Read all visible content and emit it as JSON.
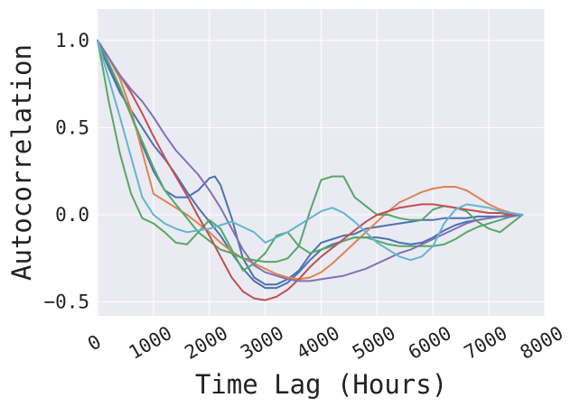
{
  "chart_data": {
    "type": "line",
    "title": "",
    "xlabel": "Time Lag (Hours)",
    "ylabel": "Autocorrelation",
    "xlim": [
      0,
      8000
    ],
    "ylim": [
      -0.58,
      1.18
    ],
    "grid": true,
    "background": "#eaeaf2",
    "xticks": [
      0,
      1000,
      2000,
      3000,
      4000,
      5000,
      6000,
      7000,
      8000
    ],
    "xtick_labels": [
      "0",
      "1000",
      "2000",
      "3000",
      "4000",
      "5000",
      "6000",
      "7000",
      "8000"
    ],
    "yticks": [
      1.0,
      0.5,
      0.0,
      -0.5
    ],
    "ytick_labels": [
      "1.0",
      "0.5",
      "0.0",
      "−0.5"
    ],
    "series": [
      {
        "color": "#4c72b0",
        "x": [
          0,
          200,
          400,
          600,
          800,
          1000,
          1200,
          1400,
          1600,
          1800,
          2000,
          2100,
          2200,
          2400,
          2600,
          2800,
          3000,
          3200,
          3400,
          3600,
          3800,
          4000,
          4200,
          4400,
          4600,
          4800,
          5000,
          5200,
          5400,
          5600,
          5800,
          6000,
          6200,
          6400,
          6600,
          6800,
          7000,
          7200,
          7400,
          7600
        ],
        "y": [
          1.0,
          0.86,
          0.72,
          0.57,
          0.4,
          0.25,
          0.14,
          0.1,
          0.1,
          0.14,
          0.21,
          0.22,
          0.17,
          -0.02,
          -0.25,
          -0.36,
          -0.4,
          -0.4,
          -0.37,
          -0.32,
          -0.23,
          -0.16,
          -0.14,
          -0.12,
          -0.11,
          -0.08,
          -0.07,
          -0.06,
          -0.05,
          -0.04,
          -0.03,
          -0.03,
          -0.02,
          -0.02,
          -0.02,
          -0.01,
          -0.01,
          -0.01,
          0.0,
          0.0
        ]
      },
      {
        "color": "#4c72b0",
        "x": [
          0,
          200,
          400,
          600,
          800,
          1000,
          1200,
          1400,
          1600,
          1800,
          2000,
          2200,
          2400,
          2600,
          2800,
          3000,
          3200,
          3400,
          3600,
          3800,
          4000,
          4200,
          4400,
          4600,
          4800,
          5000,
          5200,
          5400,
          5600,
          5800,
          6000,
          6200,
          6400,
          6600,
          6800,
          7000,
          7200,
          7400,
          7600
        ],
        "y": [
          1.0,
          0.84,
          0.7,
          0.6,
          0.5,
          0.4,
          0.32,
          0.23,
          0.13,
          0.04,
          -0.04,
          -0.12,
          -0.22,
          -0.31,
          -0.38,
          -0.42,
          -0.42,
          -0.39,
          -0.33,
          -0.26,
          -0.2,
          -0.17,
          -0.15,
          -0.13,
          -0.13,
          -0.13,
          -0.14,
          -0.16,
          -0.17,
          -0.16,
          -0.13,
          -0.09,
          -0.06,
          -0.04,
          -0.03,
          -0.02,
          -0.01,
          -0.01,
          0.0
        ]
      },
      {
        "color": "#dd8452",
        "x": [
          0,
          200,
          400,
          600,
          800,
          1000,
          1200,
          1400,
          1600,
          1800,
          2000,
          2200,
          2400,
          2600,
          2800,
          3000,
          3200,
          3400,
          3600,
          3800,
          4000,
          4200,
          4400,
          4600,
          4800,
          5000,
          5200,
          5400,
          5600,
          5800,
          6000,
          6200,
          6400,
          6600,
          6800,
          7000,
          7200,
          7400,
          7600
        ],
        "y": [
          1.0,
          0.9,
          0.78,
          0.6,
          0.36,
          0.12,
          0.08,
          0.04,
          0.0,
          -0.05,
          -0.1,
          -0.16,
          -0.21,
          -0.25,
          -0.28,
          -0.31,
          -0.34,
          -0.36,
          -0.37,
          -0.36,
          -0.33,
          -0.28,
          -0.22,
          -0.16,
          -0.1,
          -0.04,
          0.02,
          0.07,
          0.1,
          0.13,
          0.15,
          0.16,
          0.16,
          0.14,
          0.1,
          0.06,
          0.03,
          0.01,
          0.0
        ]
      },
      {
        "color": "#55a868",
        "x": [
          0,
          200,
          400,
          600,
          800,
          1000,
          1200,
          1400,
          1600,
          1800,
          2000,
          2200,
          2400,
          2600,
          2800,
          3000,
          3200,
          3400,
          3600,
          3800,
          4000,
          4100,
          4200,
          4400,
          4600,
          4800,
          5000,
          5200,
          5400,
          5600,
          5800,
          6000,
          6200,
          6400,
          6600,
          6800,
          7000,
          7200,
          7400,
          7600
        ],
        "y": [
          1.0,
          0.87,
          0.73,
          0.57,
          0.42,
          0.27,
          0.14,
          0.06,
          -0.02,
          -0.1,
          -0.15,
          -0.2,
          -0.22,
          -0.25,
          -0.26,
          -0.27,
          -0.27,
          -0.25,
          -0.18,
          0.02,
          0.2,
          0.21,
          0.22,
          0.22,
          0.1,
          0.05,
          0.0,
          0.0,
          -0.02,
          -0.03,
          -0.03,
          0.03,
          0.05,
          0.04,
          0.02,
          -0.04,
          -0.08,
          -0.1,
          -0.05,
          0.0
        ]
      },
      {
        "color": "#55a868",
        "x": [
          0,
          100,
          200,
          400,
          600,
          800,
          1000,
          1200,
          1400,
          1600,
          1800,
          2000,
          2200,
          2400,
          2600,
          2800,
          3000,
          3200,
          3400,
          3600,
          3800,
          4000,
          4200,
          4400,
          4600,
          4800,
          5000,
          5200,
          5400,
          5600,
          5800,
          6000,
          6200,
          6400,
          6600,
          6800,
          7000,
          7200,
          7400,
          7600
        ],
        "y": [
          1.0,
          0.83,
          0.65,
          0.35,
          0.12,
          -0.02,
          -0.05,
          -0.1,
          -0.16,
          -0.17,
          -0.1,
          -0.03,
          -0.08,
          -0.2,
          -0.32,
          -0.28,
          -0.22,
          -0.12,
          -0.1,
          -0.18,
          -0.22,
          -0.2,
          -0.18,
          -0.15,
          -0.13,
          -0.13,
          -0.15,
          -0.17,
          -0.18,
          -0.18,
          -0.18,
          -0.18,
          -0.17,
          -0.14,
          -0.1,
          -0.07,
          -0.05,
          -0.03,
          -0.01,
          0.0
        ]
      },
      {
        "color": "#c44e52",
        "x": [
          0,
          200,
          400,
          600,
          800,
          1000,
          1200,
          1400,
          1600,
          1800,
          2000,
          2200,
          2400,
          2600,
          2800,
          3000,
          3200,
          3400,
          3600,
          3800,
          4000,
          4200,
          4400,
          4600,
          4800,
          5000,
          5200,
          5400,
          5600,
          5800,
          6000,
          6200,
          6400,
          6600,
          6800,
          7000,
          7200,
          7400,
          7600
        ],
        "y": [
          1.0,
          0.9,
          0.8,
          0.7,
          0.58,
          0.45,
          0.33,
          0.22,
          0.11,
          -0.01,
          -0.12,
          -0.24,
          -0.36,
          -0.44,
          -0.48,
          -0.49,
          -0.47,
          -0.43,
          -0.37,
          -0.3,
          -0.24,
          -0.19,
          -0.14,
          -0.09,
          -0.04,
          0.0,
          0.02,
          0.04,
          0.05,
          0.06,
          0.06,
          0.05,
          0.04,
          0.03,
          0.02,
          0.01,
          0.01,
          0.0,
          0.0
        ]
      },
      {
        "color": "#8172b3",
        "x": [
          0,
          200,
          400,
          600,
          800,
          1000,
          1200,
          1400,
          1600,
          1800,
          2000,
          2200,
          2400,
          2600,
          2800,
          3000,
          3200,
          3400,
          3600,
          3800,
          4000,
          4200,
          4400,
          4600,
          4800,
          5000,
          5200,
          5400,
          5600,
          5800,
          6000,
          6200,
          6400,
          6600,
          6800,
          7000,
          7200,
          7400,
          7600
        ],
        "y": [
          1.0,
          0.9,
          0.8,
          0.72,
          0.65,
          0.56,
          0.46,
          0.37,
          0.3,
          0.23,
          0.14,
          0.04,
          -0.08,
          -0.2,
          -0.29,
          -0.33,
          -0.35,
          -0.37,
          -0.38,
          -0.38,
          -0.37,
          -0.36,
          -0.35,
          -0.33,
          -0.31,
          -0.28,
          -0.25,
          -0.22,
          -0.2,
          -0.17,
          -0.14,
          -0.11,
          -0.08,
          -0.05,
          -0.03,
          -0.02,
          -0.01,
          -0.01,
          0.0
        ]
      },
      {
        "color": "#64b5cd",
        "x": [
          0,
          200,
          400,
          600,
          800,
          1000,
          1200,
          1400,
          1600,
          1800,
          2000,
          2200,
          2400,
          2600,
          2800,
          3000,
          3200,
          3400,
          3600,
          3800,
          4000,
          4200,
          4400,
          4600,
          4800,
          5000,
          5200,
          5400,
          5600,
          5800,
          6000,
          6200,
          6400,
          6600,
          6800,
          7000,
          7200,
          7400,
          7600
        ],
        "y": [
          1.0,
          0.78,
          0.56,
          0.33,
          0.1,
          0.0,
          -0.05,
          -0.08,
          -0.1,
          -0.09,
          -0.08,
          -0.06,
          -0.04,
          -0.07,
          -0.1,
          -0.16,
          -0.13,
          -0.1,
          -0.06,
          -0.02,
          0.02,
          0.04,
          0.01,
          -0.04,
          -0.1,
          -0.16,
          -0.2,
          -0.24,
          -0.26,
          -0.24,
          -0.18,
          -0.05,
          0.03,
          0.06,
          0.05,
          0.04,
          0.02,
          0.01,
          0.0
        ]
      }
    ]
  }
}
